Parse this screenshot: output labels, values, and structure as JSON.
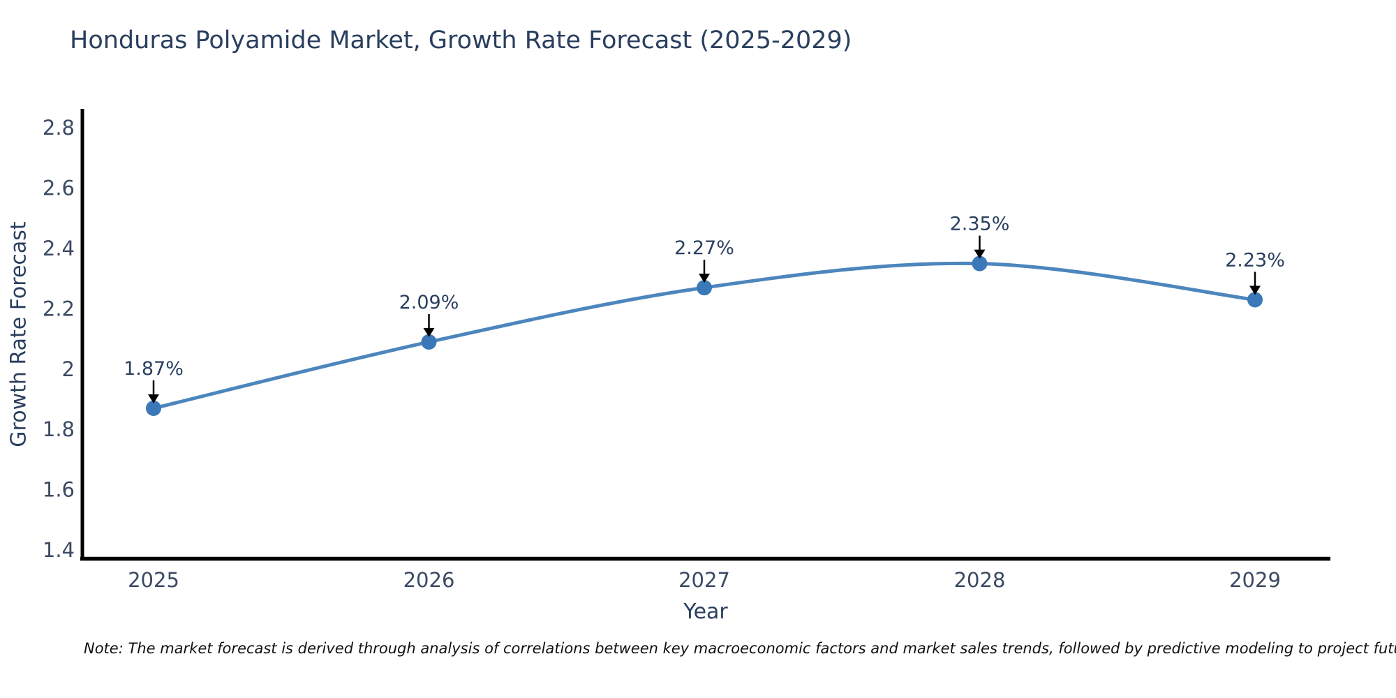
{
  "page": {
    "background": "#ffffff"
  },
  "chart_data": {
    "type": "line",
    "title": "Honduras Polyamide Market, Growth Rate Forecast (2025-2029)",
    "xlabel": "Year",
    "ylabel": "Growth Rate Forecast",
    "categories": [
      "2025",
      "2026",
      "2027",
      "2028",
      "2029"
    ],
    "values": [
      1.87,
      2.09,
      2.27,
      2.35,
      2.23
    ],
    "point_labels": [
      "1.87%",
      "2.09%",
      "2.27%",
      "2.35%",
      "2.23%"
    ],
    "ylim": [
      1.4,
      2.8
    ],
    "ytick_labels": [
      "1.4",
      "1.6",
      "1.8",
      "2",
      "2.2",
      "2.4",
      "2.6",
      "2.8"
    ],
    "grid": false,
    "legend": "none",
    "line_shape": "spline",
    "colors": {
      "line": "#4d86bd",
      "marker": "#3a78b8",
      "axis_line": "#000000",
      "tick_text": "#3b4a63",
      "title_text": "#2a3f5f",
      "annotation_text": "#2a3f5f",
      "annotation_arrow": "#000000"
    }
  },
  "note": "Note: The market forecast is derived through analysis of correlations between key macroeconomic factors and market sales trends, followed by predictive modeling to project future sales"
}
